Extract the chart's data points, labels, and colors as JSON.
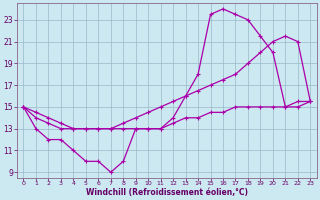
{
  "xlabel": "Windchill (Refroidissement éolien,°C)",
  "bg_color": "#cce8f0",
  "grid_color": "#9ab8c8",
  "line_color": "#aa00aa",
  "spine_color": "#886688",
  "tick_color": "#660066",
  "xlim": [
    -0.5,
    23.5
  ],
  "ylim": [
    8.5,
    24.5
  ],
  "xticks": [
    0,
    1,
    2,
    3,
    4,
    5,
    6,
    7,
    8,
    9,
    10,
    11,
    12,
    13,
    14,
    15,
    16,
    17,
    18,
    19,
    20,
    21,
    22,
    23
  ],
  "yticks": [
    9,
    11,
    13,
    15,
    17,
    19,
    21,
    23
  ],
  "line1_x": [
    0,
    1,
    2,
    3,
    4,
    5,
    6,
    7,
    8,
    9,
    10,
    11,
    12,
    13,
    14,
    15,
    16,
    17,
    18,
    19,
    20,
    21,
    22,
    23
  ],
  "line1_y": [
    15,
    13,
    12,
    12,
    11,
    10,
    10,
    9,
    10,
    13,
    13,
    13,
    14,
    16,
    18,
    23.5,
    24,
    23.5,
    23,
    21.5,
    20,
    15,
    15.5,
    15.5
  ],
  "line2_x": [
    0,
    1,
    2,
    3,
    4,
    5,
    6,
    7,
    8,
    9,
    10,
    11,
    12,
    13,
    14,
    15,
    16,
    17,
    18,
    19,
    20,
    21,
    22,
    23
  ],
  "line2_y": [
    15,
    14.5,
    14,
    13.5,
    13,
    13,
    13,
    13,
    13.5,
    14,
    14.5,
    15,
    15.5,
    16,
    16.5,
    17,
    17.5,
    18,
    19,
    20,
    21,
    21.5,
    21,
    15.5
  ],
  "line3_x": [
    0,
    1,
    2,
    3,
    4,
    5,
    6,
    7,
    8,
    9,
    10,
    11,
    12,
    13,
    14,
    15,
    16,
    17,
    18,
    19,
    20,
    21,
    22,
    23
  ],
  "line3_y": [
    15,
    14,
    13.5,
    13,
    13,
    13,
    13,
    13,
    13,
    13,
    13,
    13,
    13.5,
    14,
    14,
    14.5,
    14.5,
    15,
    15,
    15,
    15,
    15,
    15,
    15.5
  ]
}
